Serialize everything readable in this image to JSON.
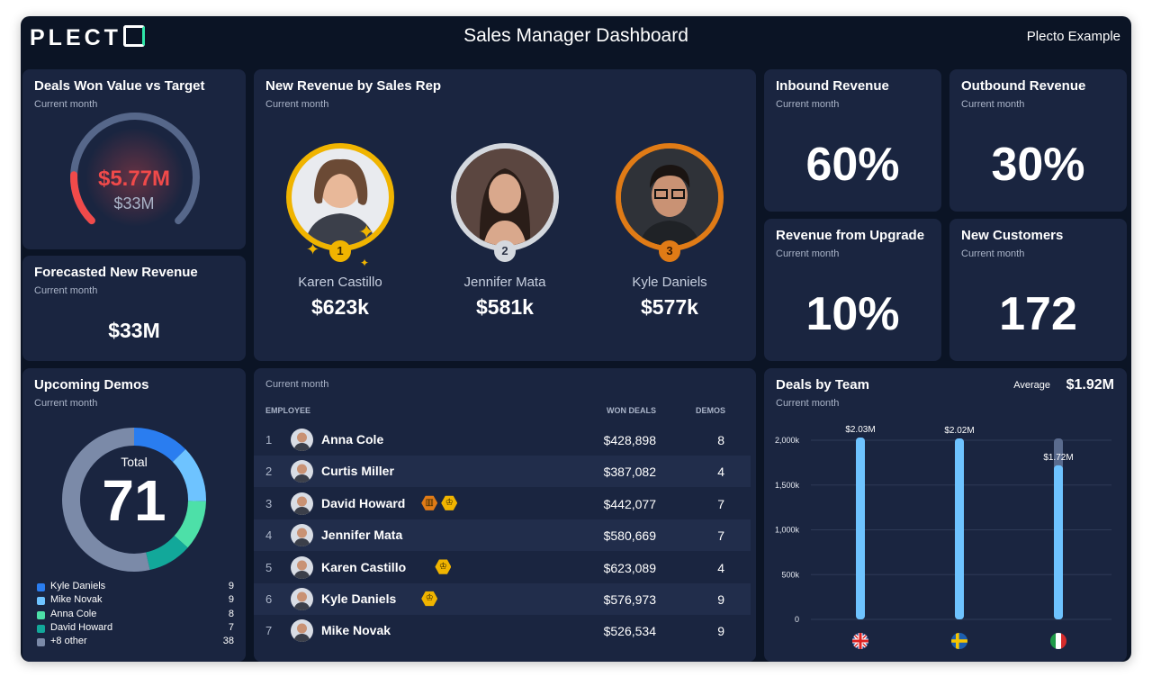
{
  "header": {
    "logo": "PLECTO",
    "title": "Sales Manager Dashboard",
    "org": "Plecto Example"
  },
  "deals_won": {
    "title": "Deals Won Value vs Target",
    "subtitle": "Current month",
    "value": "$5.77M",
    "target": "$33M",
    "progress": 0.175,
    "colors": {
      "value": "#f04a4a",
      "track": "#56678a"
    }
  },
  "forecast": {
    "title": "Forecasted New Revenue",
    "subtitle": "Current month",
    "value": "$33M"
  },
  "new_revenue": {
    "title": "New Revenue by Sales Rep",
    "subtitle": "Current month",
    "reps": [
      {
        "rank": "1",
        "name": "Karen Castillo",
        "value": "$623k",
        "ring": "#f0b400"
      },
      {
        "rank": "2",
        "name": "Jennifer Mata",
        "value": "$581k",
        "ring": "#d4d8de"
      },
      {
        "rank": "3",
        "name": "Kyle Daniels",
        "value": "$577k",
        "ring": "#e07b16"
      }
    ]
  },
  "kpis": {
    "inbound": {
      "title": "Inbound Revenue",
      "subtitle": "Current month",
      "value": "60%"
    },
    "outbound": {
      "title": "Outbound Revenue",
      "subtitle": "Current month",
      "value": "30%"
    },
    "upgrade": {
      "title": "Revenue from Upgrade",
      "subtitle": "Current month",
      "value": "10%"
    },
    "customers": {
      "title": "New Customers",
      "subtitle": "Current month",
      "value": "172"
    }
  },
  "demos": {
    "title": "Upcoming Demos",
    "subtitle": "Current month",
    "total_label": "Total",
    "total": "71",
    "legend": [
      {
        "name": "Kyle Daniels",
        "value": "9",
        "color": "#2a7df0"
      },
      {
        "name": "Mike Novak",
        "value": "9",
        "color": "#6ec3ff"
      },
      {
        "name": "Anna Cole",
        "value": "8",
        "color": "#4de0a8"
      },
      {
        "name": "David Howard",
        "value": "7",
        "color": "#12a89a"
      },
      {
        "name": "+8 other",
        "value": "38",
        "color": "#7b8aa8"
      }
    ]
  },
  "employees": {
    "subtitle": "Current month",
    "columns": {
      "employee": "EMPLOYEE",
      "won": "WON DEALS",
      "demos": "DEMOS"
    },
    "rows": [
      {
        "idx": "1",
        "name": "Anna Cole",
        "won": "$428,898",
        "demos": "8",
        "badges": []
      },
      {
        "idx": "2",
        "name": "Curtis Miller",
        "won": "$387,082",
        "demos": "4",
        "badges": []
      },
      {
        "idx": "3",
        "name": "David Howard",
        "won": "$442,077",
        "demos": "7",
        "badges": [
          "cake-icon",
          "trophy-icon"
        ]
      },
      {
        "idx": "4",
        "name": "Jennifer Mata",
        "won": "$580,669",
        "demos": "7",
        "badges": []
      },
      {
        "idx": "5",
        "name": "Karen Castillo",
        "won": "$623,089",
        "demos": "4",
        "badges": [
          "trophy-icon"
        ]
      },
      {
        "idx": "6",
        "name": "Kyle Daniels",
        "won": "$576,973",
        "demos": "9",
        "badges": [
          "trophy-icon"
        ]
      },
      {
        "idx": "7",
        "name": "Mike Novak",
        "won": "$526,534",
        "demos": "9",
        "badges": []
      }
    ]
  },
  "deals_by_team": {
    "title": "Deals by Team",
    "subtitle": "Current month",
    "average_label": "Average",
    "average_value": "$1.92M"
  },
  "chart_data": {
    "type": "bar",
    "categories": [
      "uk-flag",
      "sweden-flag",
      "italy-flag"
    ],
    "values": [
      2030,
      2020,
      1720
    ],
    "targets": [
      2030,
      2020,
      2020
    ],
    "data_labels": [
      "$2.03M",
      "$2.02M",
      "$1.72M"
    ],
    "yticks": [
      "2,000k",
      "1,500k",
      "1,000k",
      "500k",
      "0"
    ],
    "ylim": [
      0,
      2000
    ],
    "grid": true,
    "colors": {
      "bar": "#6ec3ff",
      "target": "#5a6b8e"
    }
  }
}
